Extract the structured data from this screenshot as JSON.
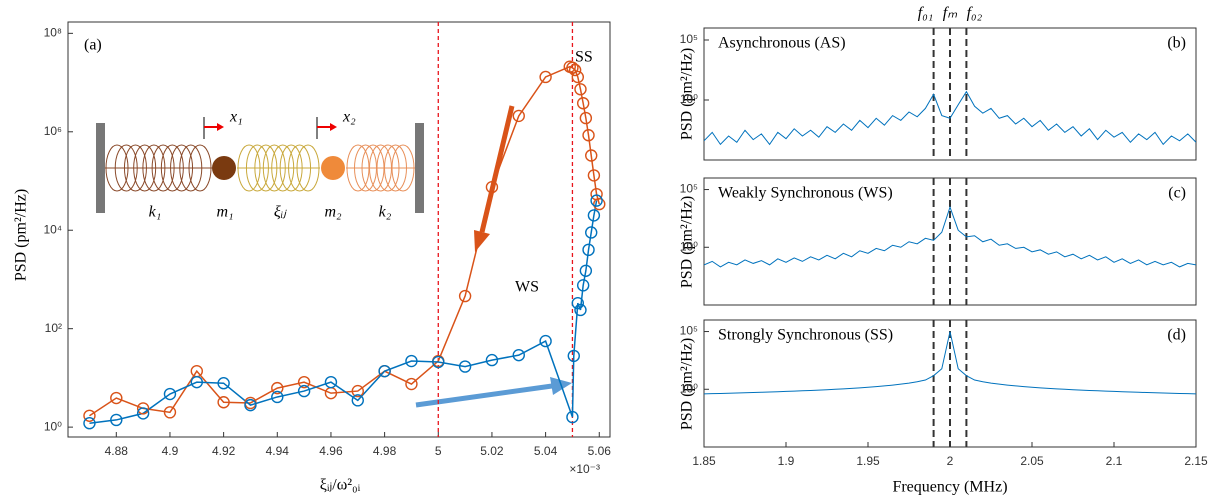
{
  "chart_data": [
    {
      "type": "line",
      "log_y": true,
      "xlabel": "ξᵢⱼ/ω²₀ᵢ",
      "ylabel": "PSD (pm²/Hz)",
      "x_multiplier": "×10⁻³",
      "panel_label": "(a)",
      "annotations": [
        "SS",
        "WS"
      ],
      "inset_labels": [
        "k₁",
        "m₁",
        "ξᵢⱼ",
        "m₂",
        "k₂",
        "x₁",
        "x₂"
      ],
      "xlim": [
        4.862,
        5.064
      ],
      "ylim": [
        0.63,
        170000000
      ],
      "xticks": [
        4.88,
        4.9,
        4.92,
        4.94,
        4.96,
        4.98,
        5,
        5.02,
        5.04,
        5.06
      ],
      "yticks": [
        {
          "value": 1,
          "label": "10⁰"
        },
        {
          "value": 100,
          "label": "10²"
        },
        {
          "value": 10000,
          "label": "10⁴"
        },
        {
          "value": 1000000,
          "label": "10⁶"
        },
        {
          "value": 100000000,
          "label": "10⁸"
        }
      ],
      "vlines": [
        5,
        5.05
      ],
      "vline_color": "#e8141b",
      "markers": true,
      "series": [
        {
          "color": "#d95319",
          "x": [
            4.87,
            4.88,
            4.89,
            4.9,
            4.91,
            4.92,
            4.93,
            4.94,
            4.95,
            4.96,
            4.97,
            4.98,
            4.99,
            5.0,
            5.01,
            5.02,
            5.03,
            5.04,
            5.049,
            5.05,
            5.051,
            5.052,
            5.053,
            5.054,
            5.055,
            5.056,
            5.057,
            5.058,
            5.059,
            5.06
          ],
          "values": [
            1.7,
            3.9,
            2.4,
            2,
            13.7,
            3.2,
            3.1,
            6.2,
            8.2,
            4.9,
            5.4,
            13.7,
            7.5,
            22,
            460,
            75000,
            2100000,
            13000000,
            21000000,
            20000000,
            18000000,
            13000000,
            7300000,
            3800000,
            1900000,
            850000,
            330000,
            130000,
            54000,
            34000
          ]
        },
        {
          "color": "#0072bd",
          "x": [
            4.87,
            4.88,
            4.89,
            4.9,
            4.91,
            4.92,
            4.93,
            4.94,
            4.95,
            4.96,
            4.97,
            4.98,
            4.99,
            5.0,
            5.01,
            5.02,
            5.03,
            5.04,
            5.05,
            5.0505,
            5.052,
            5.053,
            5.054,
            5.055,
            5.056,
            5.057,
            5.058,
            5.059
          ],
          "values": [
            1.2,
            1.4,
            1.9,
            4.7,
            8.2,
            7.8,
            2.8,
            4.1,
            5.4,
            8.2,
            3.5,
            13.7,
            22,
            21,
            17,
            23,
            29,
            56,
            1.6,
            28,
            330,
            240,
            760,
            1500,
            4000,
            9000,
            20000,
            40000
          ]
        }
      ]
    },
    {
      "type": "line",
      "log_y": true,
      "ylabel": "PSD (pm²/Hz)",
      "panel_title": "Asynchronous (AS)",
      "panel_label": "(b)",
      "xlim": [
        1.85,
        2.15
      ],
      "ylim": [
        1e-05,
        1000000
      ],
      "yticks": [
        {
          "value": 1,
          "label": "10⁰"
        },
        {
          "value": 100000,
          "label": "10⁵"
        }
      ],
      "vlines": [
        1.99,
        2.0,
        2.01
      ],
      "vline_labels": [
        "f₀₁",
        "fₘ",
        "f₀₂"
      ],
      "vline_color": "#333333",
      "series": [
        {
          "color": "#0072bd",
          "x": [
            1.85,
            1.855,
            1.86,
            1.865,
            1.87,
            1.875,
            1.88,
            1.885,
            1.89,
            1.895,
            1.9,
            1.905,
            1.91,
            1.915,
            1.92,
            1.925,
            1.93,
            1.935,
            1.94,
            1.945,
            1.95,
            1.955,
            1.96,
            1.965,
            1.97,
            1.975,
            1.98,
            1.985,
            1.99,
            1.995,
            2.0,
            2.005,
            2.01,
            2.015,
            2.02,
            2.025,
            2.03,
            2.035,
            2.04,
            2.045,
            2.05,
            2.055,
            2.06,
            2.065,
            2.07,
            2.075,
            2.08,
            2.085,
            2.09,
            2.095,
            2.1,
            2.105,
            2.11,
            2.115,
            2.12,
            2.125,
            2.13,
            2.135,
            2.14,
            2.145,
            2.15
          ],
          "values": [
            0.0004,
            0.002,
            0.0002,
            0.001,
            0.0003,
            0.003,
            0.0005,
            0.0015,
            0.0002,
            0.002,
            0.0006,
            0.004,
            0.001,
            0.003,
            0.0008,
            0.006,
            0.002,
            0.01,
            0.003,
            0.02,
            0.005,
            0.03,
            0.008,
            0.05,
            0.02,
            0.1,
            0.04,
            0.2,
            3,
            0.05,
            0.03,
            0.4,
            5,
            0.3,
            0.08,
            0.2,
            0.03,
            0.05,
            0.01,
            0.03,
            0.006,
            0.02,
            0.003,
            0.01,
            0.002,
            0.006,
            0.001,
            0.004,
            0.0005,
            0.003,
            0.0008,
            0.002,
            0.0003,
            0.0015,
            0.0005,
            0.002,
            0.0002,
            0.001,
            0.0004,
            0.0015,
            0.0003
          ]
        }
      ]
    },
    {
      "type": "line",
      "log_y": true,
      "ylabel": "PSD (pm²/Hz)",
      "panel_title": "Weakly Synchronous (WS)",
      "panel_label": "(c)",
      "xlim": [
        1.85,
        2.15
      ],
      "ylim": [
        1e-05,
        1000000
      ],
      "yticks": [
        {
          "value": 1,
          "label": "10⁰"
        },
        {
          "value": 100000,
          "label": "10⁵"
        }
      ],
      "vlines": [
        1.99,
        2.0,
        2.01
      ],
      "vline_color": "#333333",
      "series": [
        {
          "color": "#0072bd",
          "x": [
            1.85,
            1.855,
            1.86,
            1.865,
            1.87,
            1.875,
            1.88,
            1.885,
            1.89,
            1.895,
            1.9,
            1.905,
            1.91,
            1.915,
            1.92,
            1.925,
            1.93,
            1.935,
            1.94,
            1.945,
            1.95,
            1.955,
            1.96,
            1.965,
            1.97,
            1.975,
            1.98,
            1.985,
            1.99,
            1.995,
            2.0,
            2.005,
            2.01,
            2.015,
            2.02,
            2.025,
            2.03,
            2.035,
            2.04,
            2.045,
            2.05,
            2.055,
            2.06,
            2.065,
            2.07,
            2.075,
            2.08,
            2.085,
            2.09,
            2.095,
            2.1,
            2.105,
            2.11,
            2.115,
            2.12,
            2.125,
            2.13,
            2.135,
            2.14,
            2.145,
            2.15
          ],
          "values": [
            0.03,
            0.06,
            0.02,
            0.05,
            0.03,
            0.08,
            0.04,
            0.07,
            0.03,
            0.1,
            0.05,
            0.12,
            0.06,
            0.15,
            0.08,
            0.2,
            0.1,
            0.3,
            0.15,
            0.5,
            0.3,
            0.8,
            0.5,
            1.5,
            1,
            3,
            2,
            6,
            4,
            20,
            3000,
            30,
            8,
            10,
            3,
            5,
            1.5,
            2,
            0.8,
            1,
            0.4,
            0.6,
            0.25,
            0.4,
            0.15,
            0.25,
            0.1,
            0.2,
            0.08,
            0.15,
            0.05,
            0.1,
            0.04,
            0.08,
            0.03,
            0.06,
            0.03,
            0.05,
            0.02,
            0.04,
            0.03
          ]
        }
      ]
    },
    {
      "type": "line",
      "log_y": true,
      "ylabel": "PSD (pm²/Hz)",
      "xlabel": "Frequency (MHz)",
      "panel_title": "Strongly Synchronous (SS)",
      "panel_label": "(d)",
      "xlim": [
        1.85,
        2.15
      ],
      "ylim": [
        1e-05,
        1000000
      ],
      "xticks": [
        1.85,
        1.9,
        1.95,
        2,
        2.05,
        2.1,
        2.15
      ],
      "yticks": [
        {
          "value": 1,
          "label": "10⁰"
        },
        {
          "value": 100000,
          "label": "10⁵"
        }
      ],
      "vlines": [
        1.99,
        2.0,
        2.01
      ],
      "vline_color": "#333333",
      "series": [
        {
          "color": "#0072bd",
          "x": [
            1.85,
            1.855,
            1.86,
            1.865,
            1.87,
            1.875,
            1.88,
            1.885,
            1.89,
            1.895,
            1.9,
            1.905,
            1.91,
            1.915,
            1.92,
            1.925,
            1.93,
            1.935,
            1.94,
            1.945,
            1.95,
            1.955,
            1.96,
            1.965,
            1.97,
            1.975,
            1.98,
            1.985,
            1.99,
            1.995,
            2.0,
            2.005,
            2.01,
            2.015,
            2.02,
            2.025,
            2.03,
            2.035,
            2.04,
            2.045,
            2.05,
            2.055,
            2.06,
            2.065,
            2.07,
            2.075,
            2.08,
            2.085,
            2.09,
            2.095,
            2.1,
            2.105,
            2.11,
            2.115,
            2.12,
            2.125,
            2.13,
            2.135,
            2.14,
            2.145,
            2.15
          ],
          "values": [
            0.4,
            0.42,
            0.43,
            0.45,
            0.48,
            0.5,
            0.52,
            0.55,
            0.58,
            0.61,
            0.65,
            0.69,
            0.74,
            0.79,
            0.85,
            0.92,
            1,
            1.09,
            1.2,
            1.33,
            1.49,
            1.7,
            1.96,
            2.3,
            2.76,
            3.4,
            4.5,
            6.3,
            15,
            60,
            100000,
            60,
            15,
            6.3,
            4.5,
            3.4,
            2.76,
            2.3,
            1.96,
            1.7,
            1.49,
            1.33,
            1.2,
            1.09,
            1,
            0.92,
            0.85,
            0.79,
            0.74,
            0.69,
            0.65,
            0.61,
            0.58,
            0.55,
            0.52,
            0.5,
            0.48,
            0.45,
            0.43,
            0.42,
            0.4
          ]
        }
      ]
    }
  ]
}
